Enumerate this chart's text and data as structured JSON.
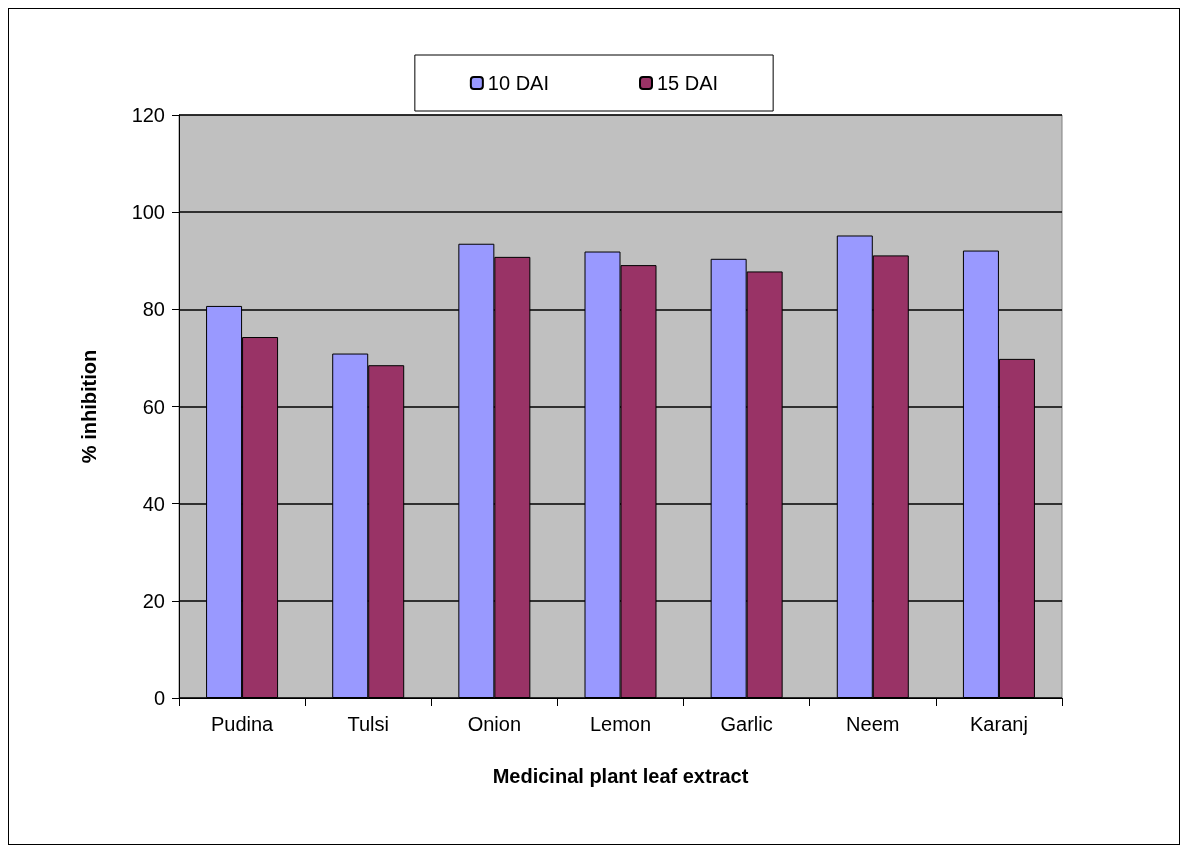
{
  "chart_data": {
    "type": "bar",
    "xlabel": "Medicinal plant leaf extract",
    "ylabel": "% inhibition",
    "categories": [
      "Pudina",
      "Tulsi",
      "Onion",
      "Lemon",
      "Garlic",
      "Neem",
      "Karanj"
    ],
    "series": [
      {
        "name": "10 DAI",
        "color": "#9999ff",
        "values": [
          80.7,
          70.9,
          93.5,
          91.9,
          90.4,
          95.2,
          92.1
        ]
      },
      {
        "name": "15 DAI",
        "color": "#993366",
        "values": [
          74.3,
          68.5,
          90.8,
          89.1,
          87.8,
          91.1,
          69.8
        ]
      }
    ],
    "ylim": [
      0,
      120
    ],
    "yticks": [
      0,
      20,
      40,
      60,
      80,
      100,
      120
    ],
    "grid": "y",
    "legend": "top"
  }
}
